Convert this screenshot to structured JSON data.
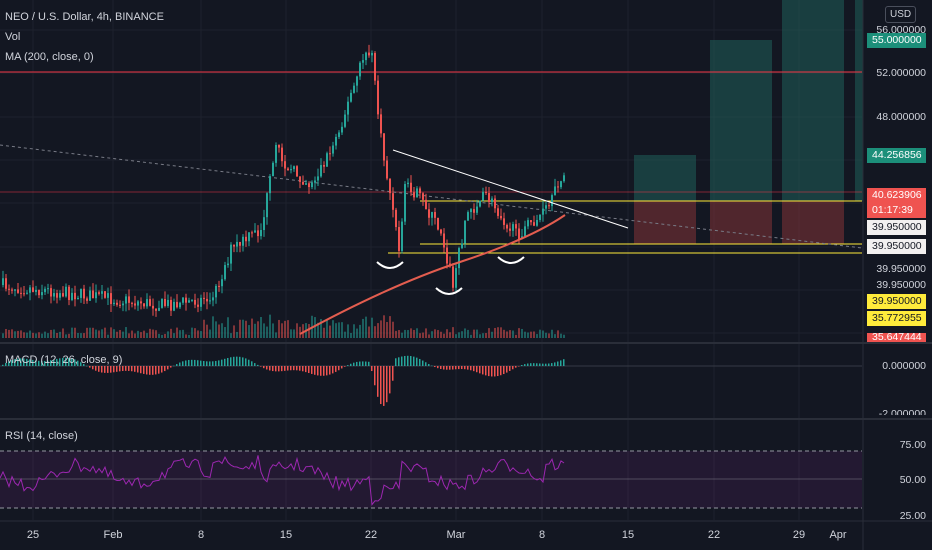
{
  "header": {
    "symbol_line": "NEO / U.S. Dollar, 4h, BINANCE",
    "vol_label": "Vol",
    "ma_label": "MA (200, close, 0)",
    "macd_label": "MACD (12, 26, close, 9)",
    "rsi_label": "RSI (14, close)",
    "currency_button": "USD"
  },
  "price_axis": [
    "56.000000",
    "52.000000",
    "48.000000",
    "39.950000",
    "39.950000"
  ],
  "price_tags": [
    {
      "text": "55.000000",
      "bg": "#1c8f7a",
      "fg": "#ffffff"
    },
    {
      "text": "44.256856",
      "bg": "#1c8f7a",
      "fg": "#ffffff"
    },
    {
      "text": "40.623906",
      "bg": "#ef5350",
      "fg": "#ffffff"
    },
    {
      "text": "01:17:39",
      "bg": "#ef5350",
      "fg": "#ffffff"
    },
    {
      "text": "39.950000",
      "bg": "#f2f0f0",
      "fg": "#131722"
    },
    {
      "text": "39.950000",
      "bg": "#f2f0f0",
      "fg": "#131722"
    },
    {
      "text": "39.950000",
      "bg": "#ffeb3b",
      "fg": "#131722"
    },
    {
      "text": "35.772955",
      "bg": "#ffeb3b",
      "fg": "#131722"
    },
    {
      "text": "35.647444",
      "bg": "#ef5350",
      "fg": "#ffffff"
    }
  ],
  "macd_axis": [
    "0.000000",
    "-2.000000"
  ],
  "rsi_axis": [
    "75.00",
    "50.00",
    "25.00"
  ],
  "date_axis": [
    "25",
    "Feb",
    "8",
    "15",
    "22",
    "Mar",
    "8",
    "15",
    "22",
    "29",
    "Apr"
  ],
  "colors": {
    "background": "#131722",
    "up": "#26a69a",
    "down": "#ef5350",
    "ma": "#e35d4f",
    "rsi": "#9c27b0",
    "resistance": "#f23645",
    "support": "#ffeb3b",
    "trendline": "#ffffff"
  },
  "annotations": {
    "pattern": "inverse head and shoulders",
    "levels": [
      "52.000000",
      "39.950000"
    ]
  }
}
